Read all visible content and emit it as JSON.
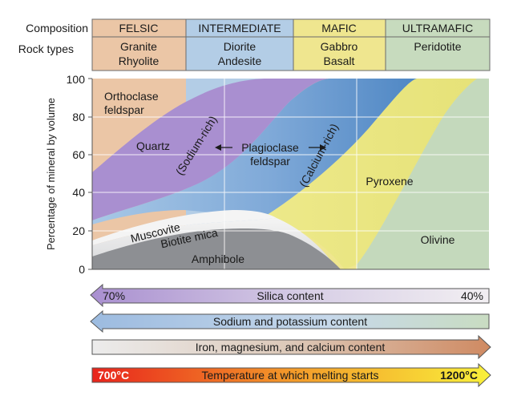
{
  "header": {
    "composition_label": "Composition",
    "rock_types_label": "Rock types"
  },
  "columns": [
    {
      "name": "FELSIC",
      "rock_1": "Granite",
      "rock_2": "Rhyolite",
      "color": "#ebc6a6"
    },
    {
      "name": "INTERMEDIATE",
      "rock_1": "Diorite",
      "rock_2": "Andesite",
      "color": "#b3cde6"
    },
    {
      "name": "MAFIC",
      "rock_1": "Gabbro",
      "rock_2": "Basalt",
      "color": "#efe68f"
    },
    {
      "name": "ULTRAMAFIC",
      "rock_1": "Peridotite",
      "rock_2": "",
      "color": "#c7dbbe"
    }
  ],
  "chart": {
    "y_axis_label": "Percentage of mineral by volume",
    "y_ticks": [
      "100",
      "80",
      "60",
      "40",
      "20",
      "0"
    ],
    "minerals": {
      "orthoclase_1": "Orthoclase",
      "orthoclase_2": "feldspar",
      "quartz": "Quartz",
      "plagioclase_1": "Plagioclase",
      "plagioclase_2": "feldspar",
      "sodium_rich": "(Sodium-rich)",
      "calcium_rich": "(Calcium-rich)",
      "pyroxene": "Pyroxene",
      "olivine": "Olivine",
      "muscovite": "Muscovite",
      "biotite": "Biotite mica",
      "amphibole": "Amphibole"
    }
  },
  "arrows": {
    "silica": {
      "label": "Silica content",
      "left": "70%",
      "right": "40%"
    },
    "sodium": {
      "label": "Sodium and potassium content"
    },
    "iron": {
      "label": "Iron, magnesium, and calcium content"
    },
    "temperature": {
      "label": "Temperature at which melting starts",
      "left": "700°C",
      "right": "1200°C"
    }
  },
  "colors": {
    "felsic": "#ebc6a6",
    "intermediate": "#b3cde6",
    "mafic": "#efe68f",
    "ultramafic": "#c7dbbe",
    "quartz": "#a98fd0",
    "plagioclase": "#5b8fc8",
    "pyroxene": "#e8e47a",
    "olivine": "#c4d9bc",
    "amphibole": "#8d8f93",
    "temp_hot": "#e8241c",
    "temp_cool": "#f9f03a"
  }
}
